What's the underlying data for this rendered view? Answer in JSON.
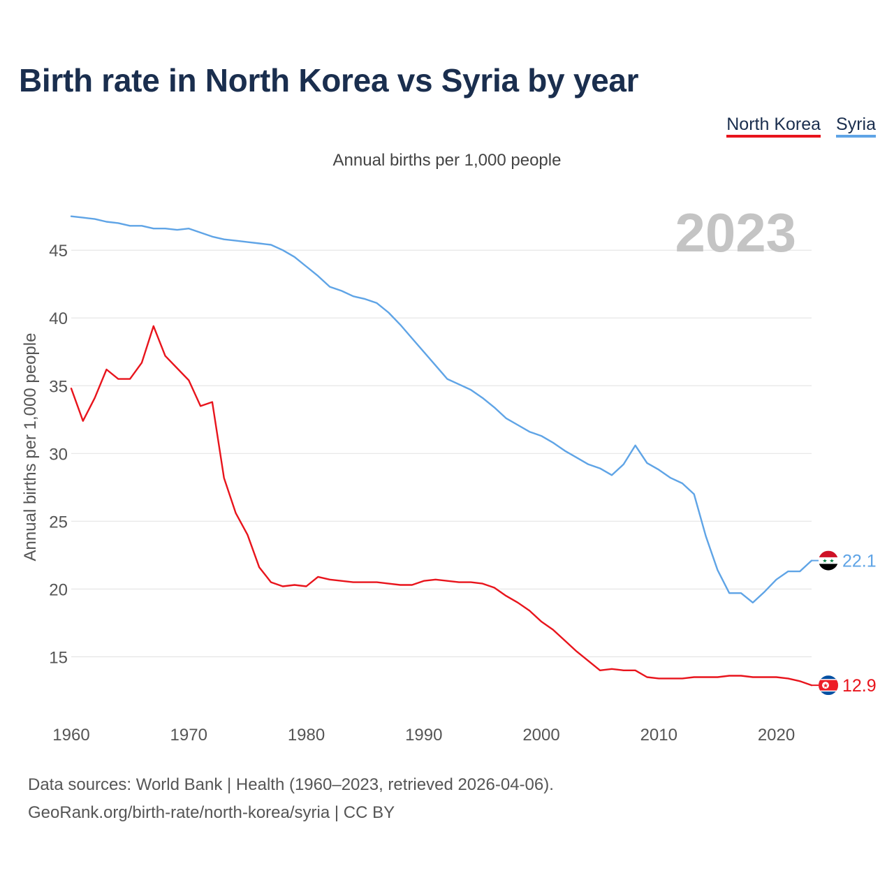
{
  "title": "Birth rate in North Korea vs Syria by year",
  "subtitle": "Annual births per 1,000 people",
  "legend": [
    {
      "name": "North Korea",
      "color": "#e8141c"
    },
    {
      "name": "Syria",
      "color": "#5fa4e6"
    }
  ],
  "year_label": "2023",
  "footer": {
    "line1": "Data sources: World Bank | Health (1960–2023, retrieved 2026-04-06).",
    "line2": "GeoRank.org/birth-rate/north-korea/syria | CC BY"
  },
  "chart_data": {
    "type": "line",
    "title": "Birth rate in North Korea vs Syria by year",
    "subtitle": "Annual births per 1,000 people",
    "xlabel": "",
    "ylabel": "Annual births per 1,000 people",
    "xlim": [
      1960,
      2023
    ],
    "ylim": [
      11,
      48
    ],
    "xticks": [
      1960,
      1970,
      1980,
      1990,
      2000,
      2010,
      2020
    ],
    "yticks": [
      15,
      20,
      25,
      30,
      35,
      40,
      45
    ],
    "grid": true,
    "legend_position": "top-right",
    "x": [
      1960,
      1961,
      1962,
      1963,
      1964,
      1965,
      1966,
      1967,
      1968,
      1969,
      1970,
      1971,
      1972,
      1973,
      1974,
      1975,
      1976,
      1977,
      1978,
      1979,
      1980,
      1981,
      1982,
      1983,
      1984,
      1985,
      1986,
      1987,
      1988,
      1989,
      1990,
      1991,
      1992,
      1993,
      1994,
      1995,
      1996,
      1997,
      1998,
      1999,
      2000,
      2001,
      2002,
      2003,
      2004,
      2005,
      2006,
      2007,
      2008,
      2009,
      2010,
      2011,
      2012,
      2013,
      2014,
      2015,
      2016,
      2017,
      2018,
      2019,
      2020,
      2021,
      2022,
      2023
    ],
    "series": [
      {
        "name": "North Korea",
        "color": "#e8141c",
        "end_label": "12.9",
        "values": [
          34.8,
          32.4,
          34.1,
          36.2,
          35.5,
          35.5,
          36.7,
          39.4,
          37.2,
          36.3,
          35.4,
          33.5,
          33.8,
          28.2,
          25.6,
          24.0,
          21.6,
          20.5,
          20.2,
          20.3,
          20.2,
          20.9,
          20.7,
          20.6,
          20.5,
          20.5,
          20.5,
          20.4,
          20.3,
          20.3,
          20.6,
          20.7,
          20.6,
          20.5,
          20.5,
          20.4,
          20.1,
          19.5,
          19.0,
          18.4,
          17.6,
          17.0,
          16.2,
          15.4,
          14.7,
          14.0,
          14.1,
          14.0,
          14.0,
          13.5,
          13.4,
          13.4,
          13.4,
          13.5,
          13.5,
          13.5,
          13.6,
          13.6,
          13.5,
          13.5,
          13.5,
          13.4,
          13.2,
          12.9
        ]
      },
      {
        "name": "Syria",
        "color": "#5fa4e6",
        "end_label": "22.1",
        "values": [
          47.5,
          47.4,
          47.3,
          47.1,
          47.0,
          46.8,
          46.8,
          46.6,
          46.6,
          46.5,
          46.6,
          46.3,
          46.0,
          45.8,
          45.7,
          45.6,
          45.5,
          45.4,
          45.0,
          44.5,
          43.8,
          43.1,
          42.3,
          42.0,
          41.6,
          41.4,
          41.1,
          40.4,
          39.5,
          38.5,
          37.5,
          36.5,
          35.5,
          35.1,
          34.7,
          34.1,
          33.4,
          32.6,
          32.1,
          31.6,
          31.3,
          30.8,
          30.2,
          29.7,
          29.2,
          28.9,
          28.4,
          29.2,
          30.6,
          29.3,
          28.8,
          28.2,
          27.8,
          27.0,
          23.9,
          21.4,
          19.7,
          19.7,
          19.0,
          19.8,
          20.7,
          21.3,
          21.3,
          22.1
        ]
      }
    ]
  }
}
